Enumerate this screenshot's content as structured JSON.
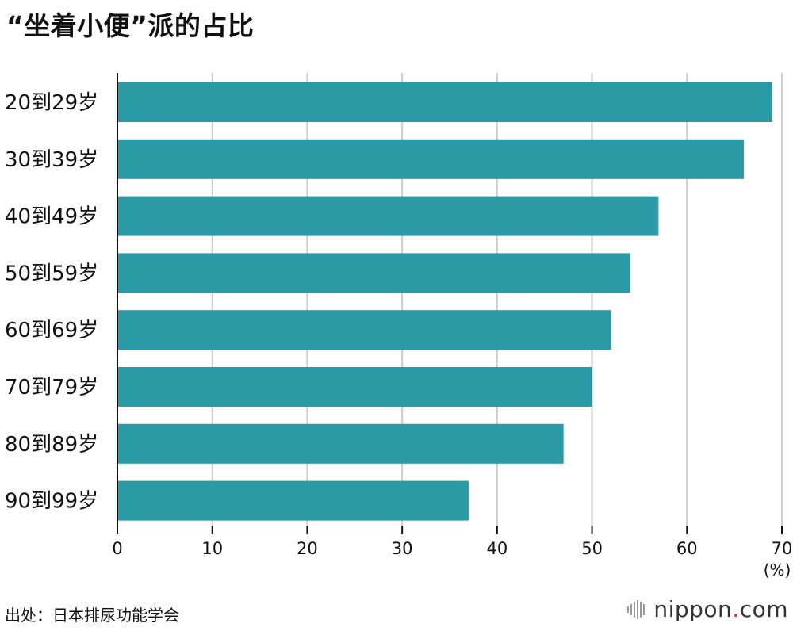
{
  "page": {
    "title": "“坐着小便”派的占比",
    "source": "出处：日本排尿功能学会",
    "brand": {
      "name": "nippon",
      "dot": ".",
      "tld": "com",
      "dot_color": "#d7263d"
    }
  },
  "colors": {
    "bar": "#2a9aa6",
    "grid": "#cccccc",
    "axis": "#111111"
  },
  "chart_data": {
    "type": "bar",
    "orientation": "horizontal",
    "title": "“坐着小便”派的占比",
    "categories": [
      "20到29岁",
      "30到39岁",
      "40到49岁",
      "50到59岁",
      "60到69岁",
      "70到79岁",
      "80到89岁",
      "90到99岁"
    ],
    "values": [
      69,
      66,
      57,
      54,
      52,
      50,
      47,
      37
    ],
    "xlim": [
      0,
      70
    ],
    "xticks": [
      0,
      10,
      20,
      30,
      40,
      50,
      60,
      70
    ],
    "xunit": "(%)",
    "grid": true
  }
}
